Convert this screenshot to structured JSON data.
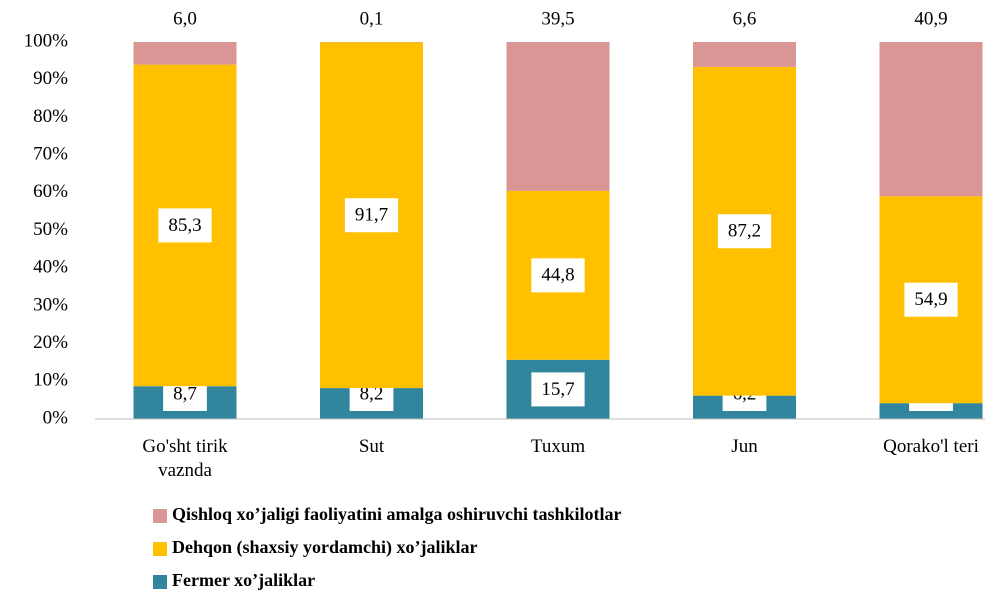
{
  "chart_data": {
    "type": "stacked_bar_100",
    "categories": [
      "Go'sht tirik vaznda",
      "Sut",
      "Tuxum",
      "Jun",
      "Qorako'l teri"
    ],
    "series": [
      {
        "name": "Fermer xo’jaliklar",
        "color": "#31859c",
        "values": [
          8.7,
          8.2,
          15.7,
          6.2,
          4.2
        ],
        "value_labels": [
          "8,7",
          "8,2",
          "15,7",
          "6,2",
          "4,2"
        ]
      },
      {
        "name": "Dehqon (shaxsiy yordamchi) xo’jaliklar",
        "color": "#ffc000",
        "values": [
          85.3,
          91.7,
          44.8,
          87.2,
          54.9
        ],
        "value_labels": [
          "85,3",
          "91,7",
          "44,8",
          "87,2",
          "54,9"
        ]
      },
      {
        "name": "Qishloq xo’jaligi faoliyatini amalga oshiruvchi tashkilotlar",
        "color": "#d99694",
        "values": [
          6.0,
          0.1,
          39.5,
          6.6,
          40.9
        ],
        "value_labels": [
          "6,0",
          "0,1",
          "39,5",
          "6,6",
          "40,9"
        ]
      }
    ],
    "ylim": [
      0,
      100
    ],
    "yticks": [
      {
        "value": 0,
        "label": "0%"
      },
      {
        "value": 10,
        "label": "10%"
      },
      {
        "value": 20,
        "label": "20%"
      },
      {
        "value": 30,
        "label": "30%"
      },
      {
        "value": 40,
        "label": "40%"
      },
      {
        "value": 50,
        "label": "50%"
      },
      {
        "value": 60,
        "label": "60%"
      },
      {
        "value": 70,
        "label": "70%"
      },
      {
        "value": 80,
        "label": "80%"
      },
      {
        "value": 90,
        "label": "90%"
      },
      {
        "value": 100,
        "label": "100%"
      }
    ],
    "legend": "bottom"
  }
}
